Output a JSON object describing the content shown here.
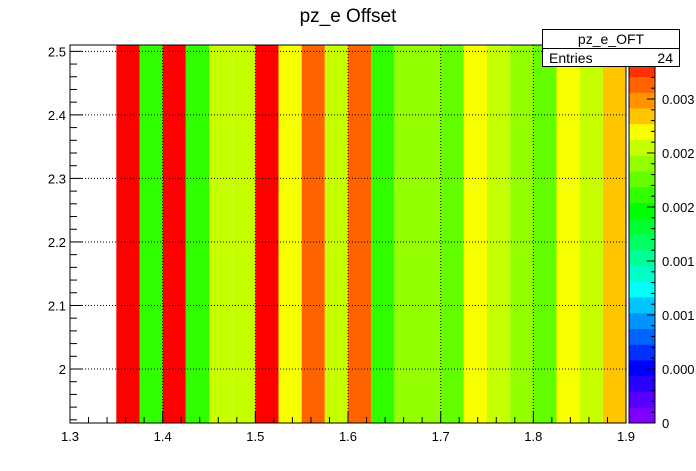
{
  "title": "pz_e Offset",
  "stats": {
    "name": "pz_e_OFT",
    "entries_label": "Entries",
    "entries_value": "24"
  },
  "chart_data": {
    "type": "heatmap",
    "title": "pz_e Offset",
    "xlabel": "",
    "ylabel": "",
    "xlim": [
      1.3,
      1.9
    ],
    "ylim": [
      1.915,
      2.51
    ],
    "grid": true,
    "x_ticks": [
      "1.3",
      "1.4",
      "1.5",
      "1.6",
      "1.7",
      "1.8",
      "1.9"
    ],
    "y_ticks": [
      "2",
      "2.1",
      "2.2",
      "2.3",
      "2.4",
      "2.5"
    ],
    "x_bin_edges": [
      1.35,
      1.375,
      1.4,
      1.425,
      1.45,
      1.475,
      1.5,
      1.525,
      1.55,
      1.575,
      1.6,
      1.625,
      1.65,
      1.675,
      1.7,
      1.725,
      1.75,
      1.775,
      1.8,
      1.825,
      1.85,
      1.875,
      1.9
    ],
    "values": [
      0.0034,
      0.0021,
      0.0036,
      0.0021,
      0.0025,
      0.0025,
      0.0036,
      0.0027,
      0.0031,
      0.0025,
      0.0031,
      0.0021,
      0.0024,
      0.0024,
      0.0023,
      0.0027,
      0.0025,
      0.0024,
      0.0023,
      0.0027,
      0.0025,
      0.0029
    ],
    "z_range": [
      0,
      0.0035
    ],
    "z_ticks": [
      "0",
      "0.0005",
      "0.001",
      "0.0015",
      "0.002",
      "0.0025",
      "0.003"
    ],
    "z_ticks_visible": [
      "0",
      "0.000",
      "0.001",
      "0.001",
      "0.002",
      "0.002",
      "0.003"
    ],
    "legend": "top-right"
  },
  "palette": [
    "#7f00ff",
    "#5500ff",
    "#2a00ff",
    "#0000ff",
    "#0031ff",
    "#0063ff",
    "#0094ff",
    "#00c6ff",
    "#00fff7",
    "#00ffc6",
    "#00ff94",
    "#00ff63",
    "#00ff31",
    "#00ff00",
    "#31ff00",
    "#63ff00",
    "#94ff00",
    "#c6ff00",
    "#f7ff00",
    "#ffc600",
    "#ff9400",
    "#ff6300",
    "#ff3100",
    "#ff0000"
  ]
}
